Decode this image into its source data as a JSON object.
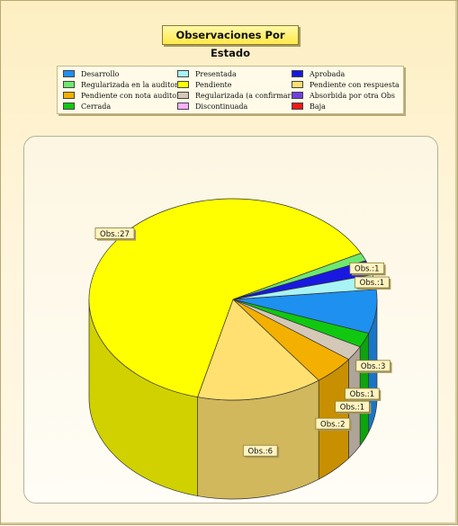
{
  "chart_data": {
    "type": "pie",
    "title": "Observaciones Por Estado",
    "label_prefix": "Obs.:",
    "legend_placement": "top",
    "slices": [
      {
        "name": "Desarrollo",
        "value": 3,
        "color": "#1e90f0"
      },
      {
        "name": "Regularizada en la auditoria",
        "value": 0,
        "color": "#6ee86e"
      },
      {
        "name": "Pendiente con nota auditor",
        "value": 2,
        "color": "#f4b000"
      },
      {
        "name": "Cerrada",
        "value": 1,
        "color": "#10c810"
      },
      {
        "name": "Presentada",
        "value": 1,
        "color": "#a8f4f4"
      },
      {
        "name": "Pendiente",
        "value": 27,
        "color": "#ffff00"
      },
      {
        "name": "Regularizada (a confirmar)",
        "value": 1,
        "color": "#d4c8b8"
      },
      {
        "name": "Discontinuada",
        "value": 0,
        "color": "#ffb0ff"
      },
      {
        "name": "Aprobada",
        "value": 1,
        "color": "#1818e0"
      },
      {
        "name": "Pendiente con respuesta",
        "value": 6,
        "color": "#ffe070"
      },
      {
        "name": "Absorbida por otra Obs",
        "value": 0,
        "color": "#7040e0"
      },
      {
        "name": "Baja",
        "value": 0,
        "color": "#f01818"
      }
    ],
    "pie_order": [
      "Desarrollo",
      "Cerrada",
      "Regularizada (a confirmar)",
      "Pendiente con nota auditor",
      "Pendiente con respuesta",
      "Pendiente",
      "Regularizada en la auditoria",
      "Aprobada",
      "Presentada"
    ],
    "label_slices": [
      "Desarrollo",
      "Cerrada",
      "Regularizada (a confirmar)",
      "Pendiente con nota auditor",
      "Pendiente con respuesta",
      "Pendiente",
      "Aprobada",
      "Presentada"
    ]
  }
}
